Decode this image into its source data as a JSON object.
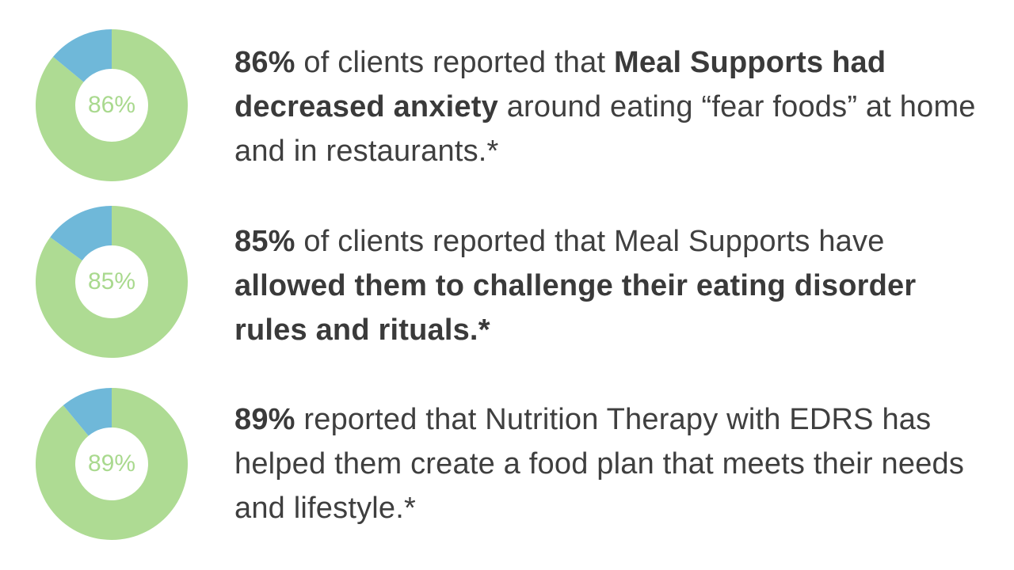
{
  "colors": {
    "primary": "#aedb93",
    "remainder": "#6fb8d9",
    "label": "#a9d98e",
    "text": "#3f3f3f"
  },
  "chart_data": [
    {
      "type": "pie",
      "categories": [
        "reported",
        "other"
      ],
      "values": [
        86,
        14
      ],
      "center_label": "86%"
    },
    {
      "type": "pie",
      "categories": [
        "reported",
        "other"
      ],
      "values": [
        85,
        15
      ],
      "center_label": "85%"
    },
    {
      "type": "pie",
      "categories": [
        "reported",
        "other"
      ],
      "values": [
        89,
        11
      ],
      "center_label": "89%"
    }
  ],
  "stats": [
    {
      "segments": [
        {
          "text": "86%",
          "bold": true
        },
        {
          "text": " of clients reported that ",
          "bold": false
        },
        {
          "text": "Meal Supports had decreased anxiety",
          "bold": true
        },
        {
          "text": " around eating “fear foods” at home and in restaurants.*",
          "bold": false
        }
      ]
    },
    {
      "segments": [
        {
          "text": "85%",
          "bold": true
        },
        {
          "text": " of clients reported that Meal Supports have ",
          "bold": false
        },
        {
          "text": "allowed them to challenge their eating disorder rules and rituals.*",
          "bold": true
        }
      ]
    },
    {
      "segments": [
        {
          "text": "89%",
          "bold": true
        },
        {
          "text": " reported that Nutrition Therapy with EDRS has helped them create a food plan that meets their needs and lifestyle.*",
          "bold": false
        }
      ]
    }
  ]
}
